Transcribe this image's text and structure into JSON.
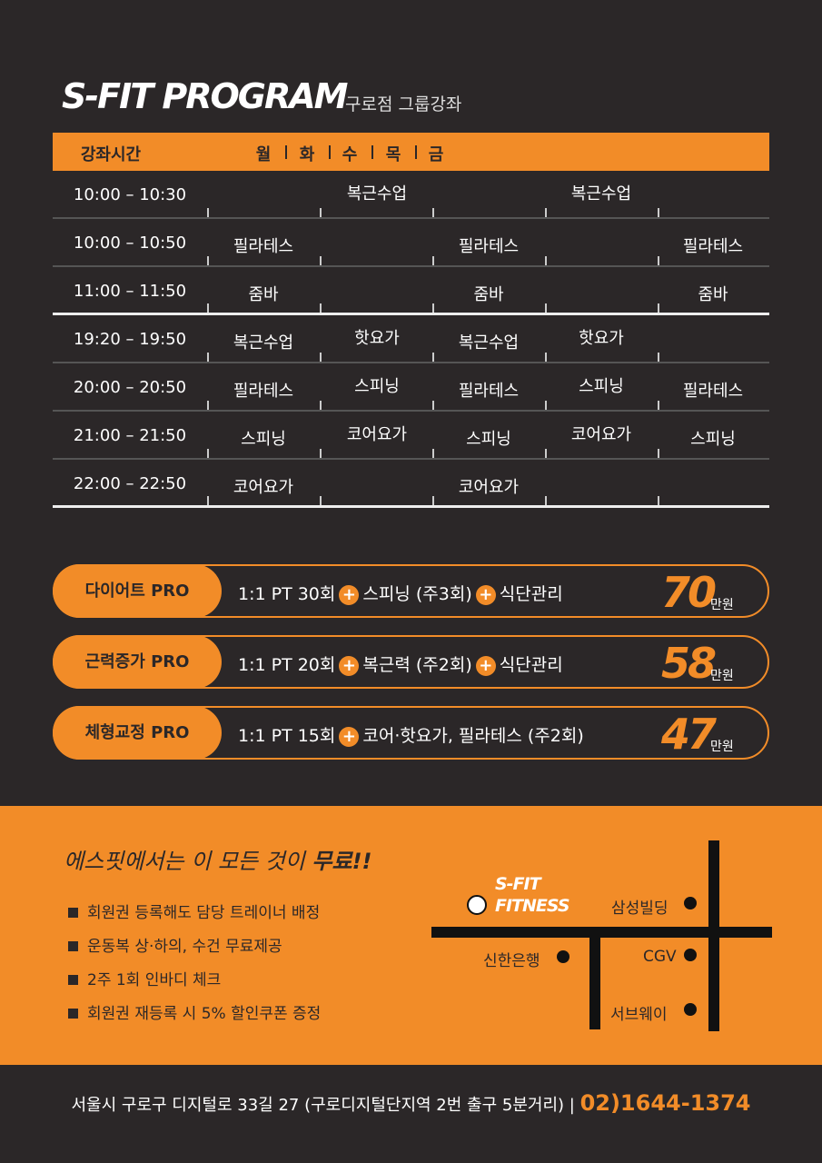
{
  "header": {
    "title": "S-FIT PROGRAM",
    "subtitle": "구로점 그룹강좌"
  },
  "schedule": {
    "header": [
      "강좌시간",
      "월",
      "화",
      "수",
      "목",
      "금"
    ],
    "rows": [
      {
        "time": "10:00 – 10:30",
        "classes": [
          null,
          "복근수업",
          null,
          "복근수업",
          null
        ]
      },
      {
        "time": "10:00 – 10:50",
        "classes": [
          "필라테스",
          null,
          "필라테스",
          null,
          "필라테스"
        ]
      },
      {
        "time": "11:00 – 11:50",
        "classes": [
          "줌바",
          null,
          "줌바",
          null,
          "줌바"
        ]
      },
      {
        "time": "19:20 – 19:50",
        "classes": [
          "복근수업",
          "핫요가",
          "복근수업",
          "핫요가",
          null
        ]
      },
      {
        "time": "20:00 – 20:50",
        "classes": [
          "필라테스",
          "스피닝",
          "필라테스",
          "스피닝",
          "필라테스"
        ]
      },
      {
        "time": "21:00 – 21:50",
        "classes": [
          "스피닝",
          "코어요가",
          "스피닝",
          "코어요가",
          "스피닝"
        ]
      },
      {
        "time": "22:00 – 22:50",
        "classes": [
          "코어요가",
          null,
          "코어요가",
          null,
          null
        ]
      }
    ]
  },
  "programs": [
    {
      "name": "다이어트 PRO",
      "items": [
        "1:1 PT 30회",
        "스피닝 (주3회)",
        "식단관리"
      ],
      "price": 70,
      "unit": "만원"
    },
    {
      "name": "근력증가 PRO",
      "items": [
        "1:1 PT 20회",
        "복근력 (주2회)",
        "식단관리"
      ],
      "price": 58,
      "unit": "만원"
    },
    {
      "name": "체형교정 PRO",
      "items": [
        "1:1 PT 15회",
        "코어·핫요가, 필라테스 (주2회)"
      ],
      "price": 47,
      "unit": "만원"
    }
  ],
  "benefits": {
    "heading": "에스핏에서는 이 모든 것이",
    "highlight": "무료!!",
    "items": [
      "회원권 등록해도 담당 트레이너 배정",
      "운동복 상·하의, 수건 무료제공",
      "2주 1회 인바디 체크",
      "회원권 재등록 시 5% 할인쿠폰 증정"
    ]
  },
  "map": {
    "logo": [
      "S-FIT",
      "FITNESS"
    ],
    "places": [
      "삼성빌딩",
      "신한은행",
      "CGV",
      "서브웨이"
    ]
  },
  "footer": {
    "address": "서울시 구로구 디지털로 33길 27 (구로디지털단지역 2번 출구 5분거리) |",
    "phone": "02)1644-1374"
  }
}
